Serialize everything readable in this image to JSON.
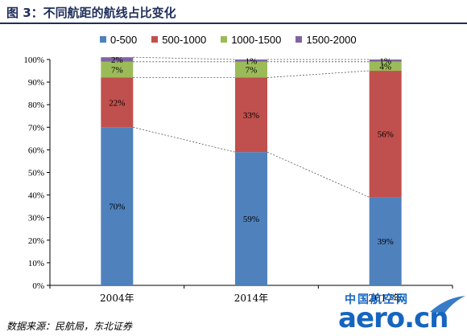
{
  "page": {
    "title": "图 3：不同航距的航线占比变化",
    "source": "数据来源：民航局，东北证券"
  },
  "watermark": {
    "text_cn": "中国航空网",
    "text_en": "aero.cn",
    "color": "#1565c0"
  },
  "chart_data": {
    "type": "bar",
    "stacked": true,
    "title": "",
    "xlabel": "",
    "ylabel": "",
    "categories": [
      "2004年",
      "2014年",
      "2017年"
    ],
    "ylim": [
      0,
      100
    ],
    "yticks": [
      "0%",
      "10%",
      "20%",
      "30%",
      "40%",
      "50%",
      "60%",
      "70%",
      "80%",
      "90%",
      "100%"
    ],
    "legend_position": "top",
    "grid": false,
    "connector_lines": "dashed",
    "series": [
      {
        "name": "0-500",
        "color": "#4f81bd",
        "values": [
          70,
          59,
          39
        ],
        "labels": [
          "70%",
          "59%",
          "39%"
        ]
      },
      {
        "name": "500-1000",
        "color": "#c0504d",
        "values": [
          22,
          33,
          56
        ],
        "labels": [
          "22%",
          "33%",
          "56%"
        ]
      },
      {
        "name": "1000-1500",
        "color": "#9bbb59",
        "values": [
          7,
          7,
          4
        ],
        "labels": [
          "7%",
          "7%",
          "4%"
        ]
      },
      {
        "name": "1500-2000",
        "color": "#8064a2",
        "values": [
          2,
          1,
          1
        ],
        "labels": [
          "2%",
          "1%",
          "1%"
        ]
      }
    ]
  }
}
